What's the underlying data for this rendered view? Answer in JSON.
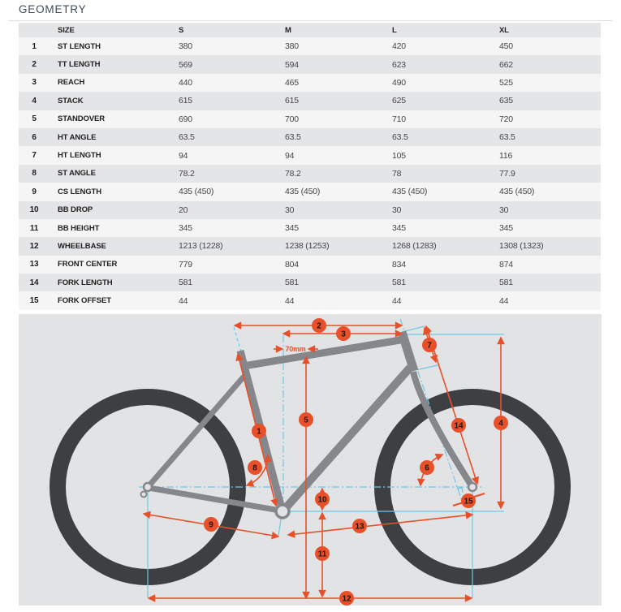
{
  "title": "GEOMETRY",
  "table": {
    "size_header": "SIZE",
    "columns": [
      "S",
      "M",
      "L",
      "XL"
    ],
    "rows": [
      {
        "num": "1",
        "label": "ST LENGTH",
        "values": [
          "380",
          "380",
          "420",
          "450"
        ]
      },
      {
        "num": "2",
        "label": "TT LENGTH",
        "values": [
          "569",
          "594",
          "623",
          "662"
        ]
      },
      {
        "num": "3",
        "label": "REACH",
        "values": [
          "440",
          "465",
          "490",
          "525"
        ]
      },
      {
        "num": "4",
        "label": "STACK",
        "values": [
          "615",
          "615",
          "625",
          "635"
        ]
      },
      {
        "num": "5",
        "label": "STANDOVER",
        "values": [
          "690",
          "700",
          "710",
          "720"
        ]
      },
      {
        "num": "6",
        "label": "HT ANGLE",
        "values": [
          "63.5",
          "63.5",
          "63.5",
          "63.5"
        ]
      },
      {
        "num": "7",
        "label": "HT LENGTH",
        "values": [
          "94",
          "94",
          "105",
          "116"
        ]
      },
      {
        "num": "8",
        "label": "ST ANGLE",
        "values": [
          "78.2",
          "78.2",
          "78",
          "77.9"
        ]
      },
      {
        "num": "9",
        "label": "CS LENGTH",
        "values": [
          "435 (450)",
          "435 (450)",
          "435 (450)",
          "435 (450)"
        ]
      },
      {
        "num": "10",
        "label": "BB DROP",
        "values": [
          "20",
          "30",
          "30",
          "30"
        ]
      },
      {
        "num": "11",
        "label": "BB HEIGHT",
        "values": [
          "345",
          "345",
          "345",
          "345"
        ]
      },
      {
        "num": "12",
        "label": "WHEELBASE",
        "values": [
          "1213 (1228)",
          "1238 (1253)",
          "1268 (1283)",
          "1308 (1323)"
        ]
      },
      {
        "num": "13",
        "label": "FRONT CENTER",
        "values": [
          "779",
          "804",
          "834",
          "874"
        ]
      },
      {
        "num": "14",
        "label": "FORK LENGTH",
        "values": [
          "581",
          "581",
          "581",
          "581"
        ]
      },
      {
        "num": "15",
        "label": "FORK OFFSET",
        "values": [
          "44",
          "44",
          "44",
          "44"
        ]
      }
    ]
  },
  "diagram": {
    "marker_labels": [
      "1",
      "2",
      "3",
      "4",
      "5",
      "6",
      "7",
      "8",
      "9",
      "10",
      "11",
      "12",
      "13",
      "14",
      "15"
    ],
    "offset_label": "70mm",
    "colors": {
      "accent": "#e8502a",
      "reference": "#72c7e7",
      "frame": "#85878a",
      "tire": "#3d3f42",
      "background": "#e2e3e5"
    }
  }
}
